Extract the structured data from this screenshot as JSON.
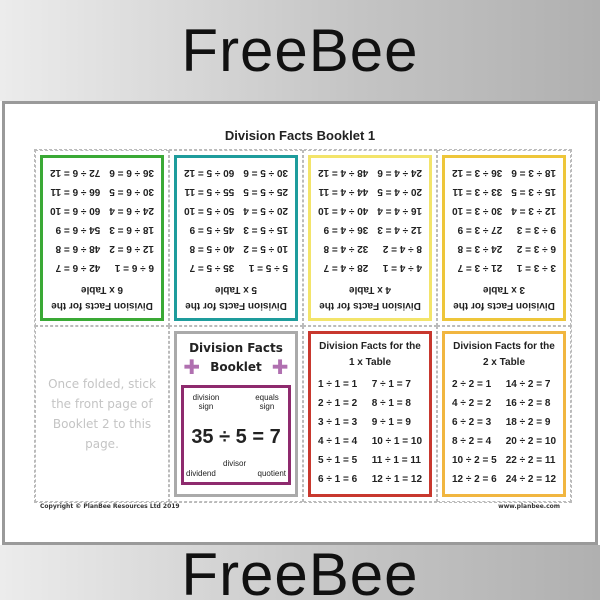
{
  "banner": {
    "top": "FreeBee",
    "bottom": "FreeBee"
  },
  "sheet_title": "Division Facts Booklet 1",
  "colors": {
    "6": "#3aa935",
    "5": "#1e9c9c",
    "4": "#f3e46a",
    "3": "#eec63a",
    "1": "#c8382e",
    "2": "#f1b640",
    "cover": "#8e2a6e"
  },
  "panels_top": [
    {
      "title": "Division Facts for the",
      "table": "6 x Table",
      "color": "#3aa935",
      "facts": [
        "6 ÷ 6 = 1",
        "12 ÷ 6 = 2",
        "18 ÷ 6 = 3",
        "24 ÷ 6 = 4",
        "30 ÷ 6 = 5",
        "36 ÷ 6 = 6",
        "42 ÷ 6 = 7",
        "48 ÷ 6 = 8",
        "54 ÷ 6 = 9",
        "60 ÷ 6 = 10",
        "66 ÷ 6 = 11",
        "72 ÷ 6 = 12"
      ]
    },
    {
      "title": "Division Facts for the",
      "table": "5 x Table",
      "color": "#1e9c9c",
      "facts": [
        "5 ÷ 5 = 1",
        "10 ÷ 5 = 2",
        "15 ÷ 5 = 3",
        "20 ÷ 5 = 4",
        "25 ÷ 5 = 5",
        "30 ÷ 5 = 6",
        "35 ÷ 5 = 7",
        "40 ÷ 5 = 8",
        "45 ÷ 5 = 9",
        "50 ÷ 5 = 10",
        "55 ÷ 5 = 11",
        "60 ÷ 5 = 12"
      ]
    },
    {
      "title": "Division Facts for the",
      "table": "4 x Table",
      "color": "#f3e46a",
      "facts": [
        "4 ÷ 4 = 1",
        "8 ÷ 4 = 2",
        "12 ÷ 4 = 3",
        "16 ÷ 4 = 4",
        "20 ÷ 4 = 5",
        "24 ÷ 4 = 6",
        "28 ÷ 4 = 7",
        "32 ÷ 4 = 8",
        "36 ÷ 4 = 9",
        "40 ÷ 4 = 10",
        "44 ÷ 4 = 11",
        "48 ÷ 4 = 12"
      ]
    },
    {
      "title": "Division Facts for the",
      "table": "3 x Table",
      "color": "#eec63a",
      "facts": [
        "3 ÷ 3 = 1",
        "6 ÷ 3 = 2",
        "9 ÷ 3 = 3",
        "12 ÷ 3 = 4",
        "15 ÷ 3 = 5",
        "18 ÷ 3 = 6",
        "21 ÷ 3 = 7",
        "24 ÷ 3 = 8",
        "27 ÷ 3 = 9",
        "30 ÷ 3 = 10",
        "33 ÷ 3 = 11",
        "36 ÷ 3 = 12"
      ]
    }
  ],
  "stick_note": "Once folded, stick the front page of Booklet 2 to this page.",
  "cover": {
    "title1": "Division Facts",
    "title2": "Booklet",
    "equation": "35 ÷ 5 = 7",
    "labels": {
      "division_sign": "division sign",
      "equals_sign": "equals sign",
      "dividend": "dividend",
      "divisor": "divisor",
      "quotient": "quotient"
    }
  },
  "panels_bottom": [
    {
      "title": "Division Facts for the",
      "table": "1 x Table",
      "color": "#c8382e",
      "facts": [
        "1 ÷ 1 = 1",
        "2 ÷ 1 = 2",
        "3 ÷ 1 = 3",
        "4 ÷ 1 = 4",
        "5 ÷ 1 = 5",
        "6 ÷ 1 = 6",
        "7 ÷ 1 = 7",
        "8 ÷ 1 = 8",
        "9 ÷ 1 = 9",
        "10 ÷ 1 = 10",
        "11 ÷ 1 = 11",
        "12 ÷ 1 = 12"
      ]
    },
    {
      "title": "Division Facts for the",
      "table": "2 x Table",
      "color": "#f1b640",
      "facts": [
        "2 ÷ 2 = 1",
        "4 ÷ 2 = 2",
        "6 ÷ 2 = 3",
        "8 ÷ 2 = 4",
        "10 ÷ 2 = 5",
        "12 ÷ 2 = 6",
        "14 ÷ 2 = 7",
        "16 ÷ 2 = 8",
        "18 ÷ 2 = 9",
        "20 ÷ 2 = 10",
        "22 ÷ 2 = 11",
        "24 ÷ 2 = 12"
      ]
    }
  ],
  "footer": {
    "copyright": "Copyright © PlanBee Resources Ltd 2019",
    "url": "www.planbee.com"
  }
}
